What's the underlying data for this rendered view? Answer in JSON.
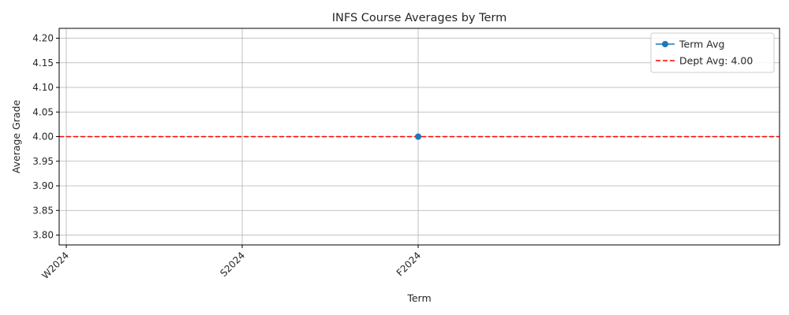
{
  "chart_data": {
    "type": "line",
    "title": "INFS Course Averages by Term",
    "xlabel": "Term",
    "ylabel": "Average Grade",
    "categories": [
      "W2024",
      "S2024",
      "F2024"
    ],
    "ylim": [
      3.78,
      4.22
    ],
    "yticks": [
      "3.80",
      "3.85",
      "3.90",
      "3.95",
      "4.00",
      "4.05",
      "4.10",
      "4.15",
      "4.20"
    ],
    "series": [
      {
        "name": "Term Avg",
        "values": [
          null,
          null,
          4.0
        ],
        "color": "#1f77b4",
        "marker": "circle"
      }
    ],
    "reference_line": {
      "label": "Dept Avg: 4.00",
      "value": 4.0,
      "color": "#ff0000",
      "style": "dashed"
    },
    "grid": true,
    "legend": "top-right"
  }
}
